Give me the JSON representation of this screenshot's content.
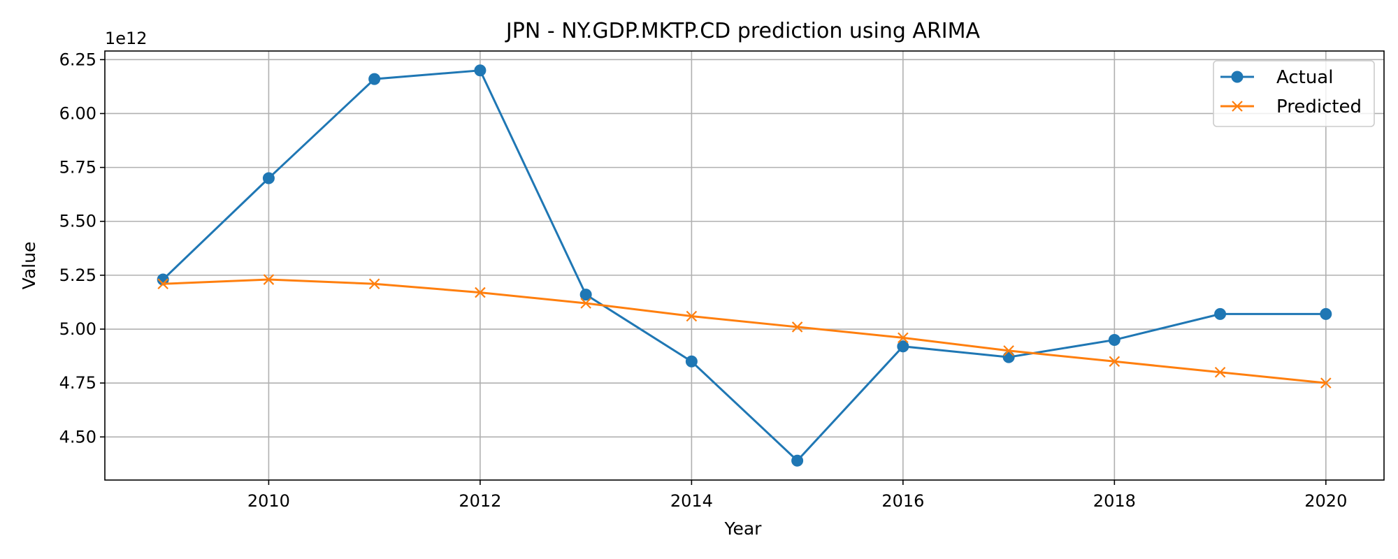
{
  "chart_data": {
    "type": "line",
    "title": "JPN - NY.GDP.MKTP.CD prediction using ARIMA",
    "xlabel": "Year",
    "ylabel": "Value",
    "y_offset_text": "1e12",
    "y_multiplier": 1000000000000.0,
    "x": [
      2009,
      2010,
      2011,
      2012,
      2013,
      2014,
      2015,
      2016,
      2017,
      2018,
      2019,
      2020
    ],
    "xlim": [
      2008.45,
      2020.55
    ],
    "ylim": [
      4.3,
      6.29
    ],
    "x_ticks": [
      2010,
      2012,
      2014,
      2016,
      2018,
      2020
    ],
    "x_tick_labels": [
      "2010",
      "2012",
      "2014",
      "2016",
      "2018",
      "2020"
    ],
    "y_ticks": [
      4.5,
      4.75,
      5.0,
      5.25,
      5.5,
      5.75,
      6.0,
      6.25
    ],
    "y_tick_labels": [
      "4.50",
      "4.75",
      "5.00",
      "5.25",
      "5.50",
      "5.75",
      "6.00",
      "6.25"
    ],
    "grid": true,
    "legend_position": "top-right",
    "series": [
      {
        "name": "Actual",
        "color": "#1f77b4",
        "marker": "circle",
        "values": [
          5.23,
          5.7,
          6.16,
          6.2,
          5.16,
          4.85,
          4.39,
          4.92,
          4.87,
          4.95,
          5.07,
          5.07
        ]
      },
      {
        "name": "Predicted",
        "color": "#ff7f0e",
        "marker": "x",
        "values": [
          5.21,
          5.23,
          5.21,
          5.17,
          5.12,
          5.06,
          5.01,
          4.96,
          4.9,
          4.85,
          4.8,
          4.75
        ]
      }
    ]
  }
}
